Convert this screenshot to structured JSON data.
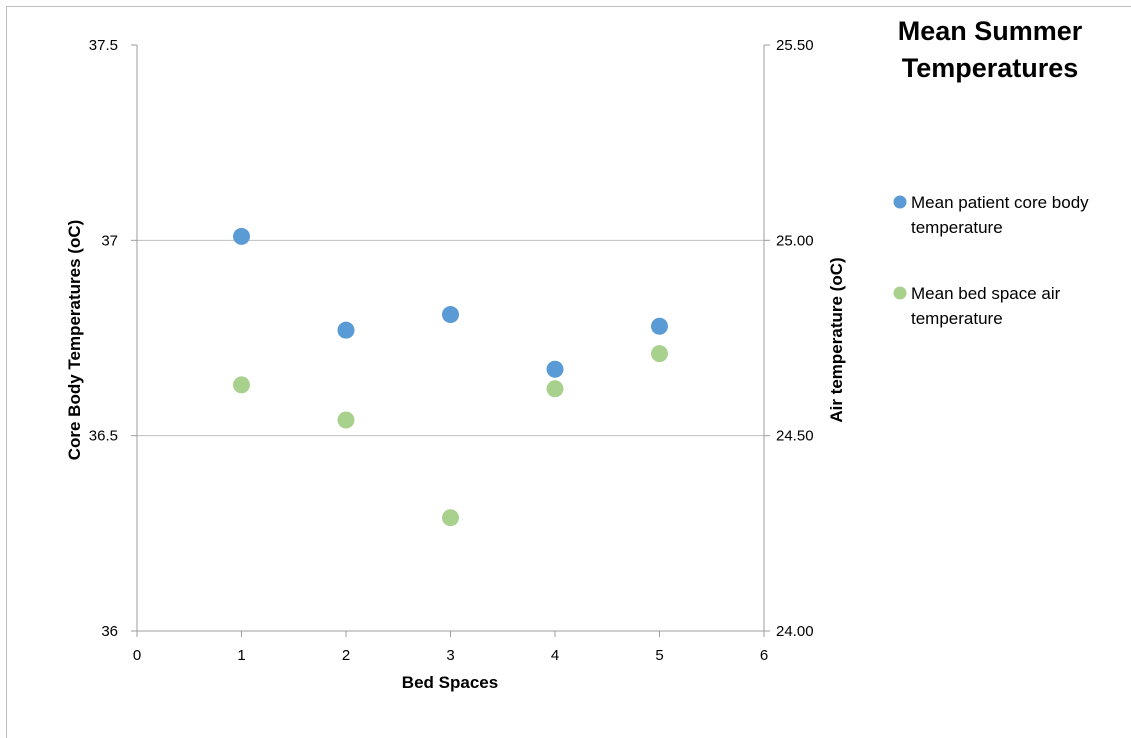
{
  "chart_data": {
    "type": "scatter",
    "title": "Mean Summer Temperatures",
    "title_lines": [
      "Mean Summer",
      "Temperatures"
    ],
    "xlabel": "Bed Spaces",
    "ylabel": "Core Body Temperatures (oC)",
    "y2label": "Air temperature (oC)",
    "xlim": [
      0,
      6
    ],
    "ylim": [
      36,
      37.5
    ],
    "y2lim": [
      24.0,
      25.5
    ],
    "x_ticks": [
      0,
      1,
      2,
      3,
      4,
      5,
      6
    ],
    "y_ticks": [
      "36",
      "36.5",
      "37",
      "37.5"
    ],
    "y_tick_values": [
      36,
      36.5,
      37,
      37.5
    ],
    "y2_ticks": [
      "24.00",
      "24.50",
      "25.00",
      "25.50"
    ],
    "y2_tick_values": [
      24.0,
      24.5,
      25.0,
      25.5
    ],
    "gridlines": [
      36.5,
      37
    ],
    "legend_position": "right",
    "series": [
      {
        "name": "Mean patient core body temperature",
        "legend_lines": [
          "Mean patient core body",
          "temperature"
        ],
        "axis": "left",
        "color": "#5B9BD5",
        "x": [
          1,
          2,
          3,
          4,
          5
        ],
        "y": [
          37.01,
          36.77,
          36.81,
          36.67,
          36.78
        ]
      },
      {
        "name": "Mean bed space air temperature",
        "legend_lines": [
          "Mean bed space air",
          "temperature"
        ],
        "axis": "right",
        "color": "#A9D18E",
        "x": [
          1,
          2,
          3,
          4,
          5
        ],
        "y": [
          24.63,
          24.54,
          24.29,
          24.62,
          24.71
        ]
      }
    ]
  }
}
